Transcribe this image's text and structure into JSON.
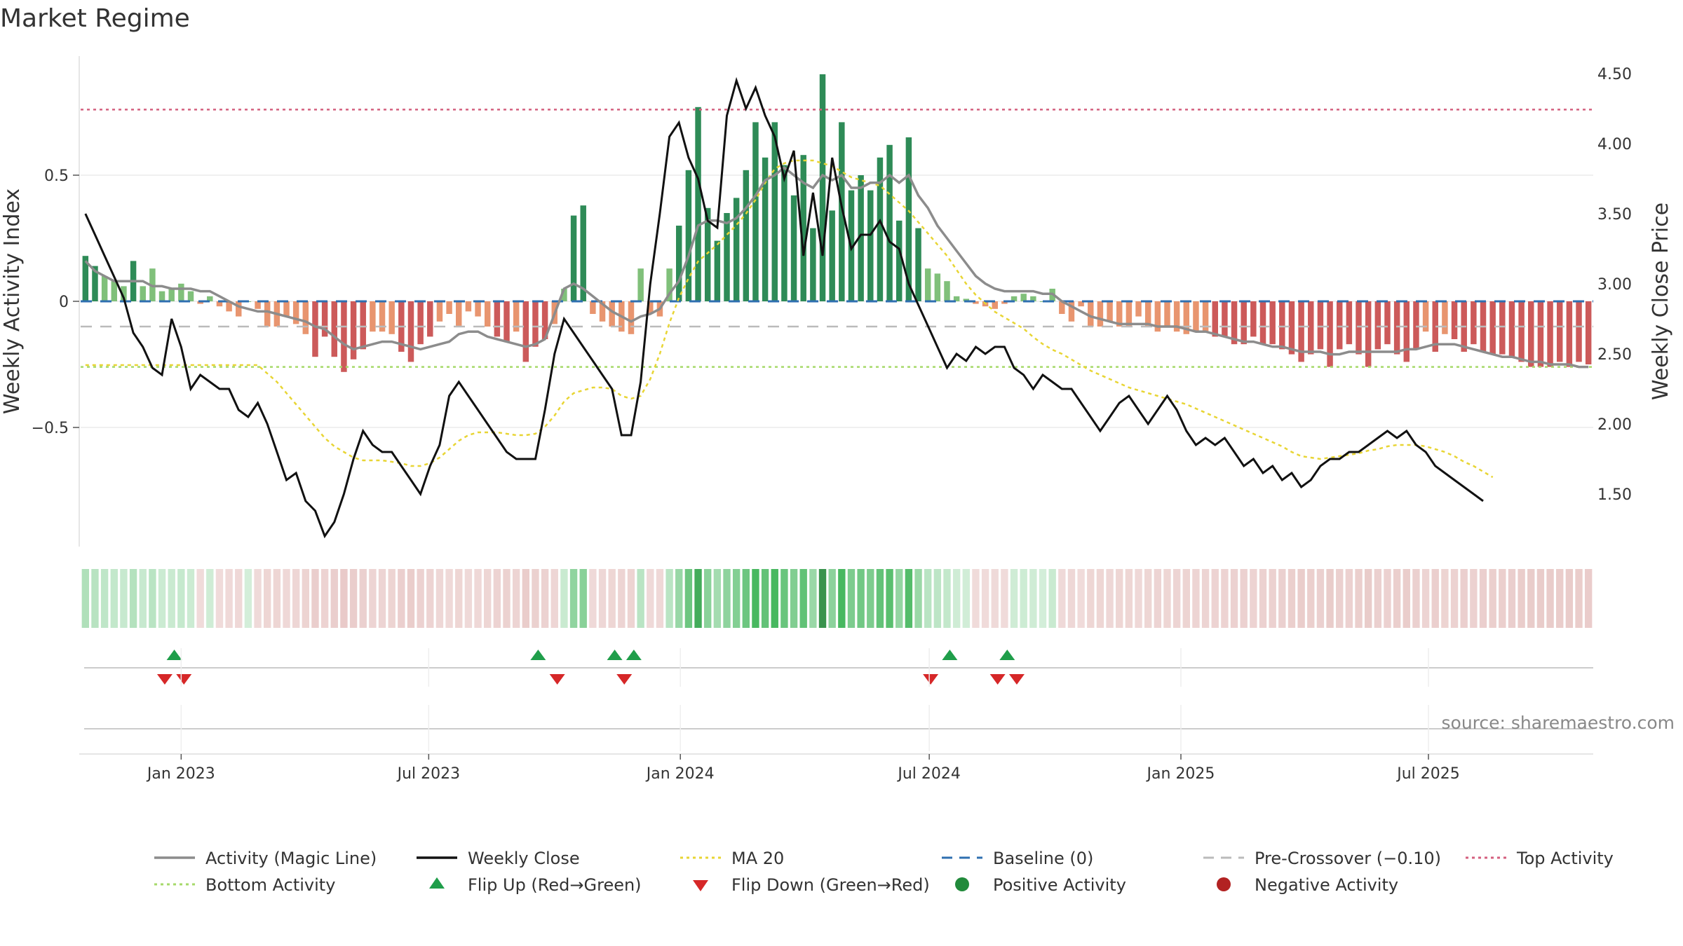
{
  "chart_data": {
    "type": "bar",
    "title": "Market Regime",
    "ylabel_left": "Weekly Activity Index",
    "ylabel_right": "Weekly Close Price",
    "source": "source: sharemaestro.com",
    "ylim_left": [
      -0.97,
      0.97
    ],
    "ylim_right": [
      1.1,
      4.6
    ],
    "left_ticks": [
      {
        "v": 0.5,
        "label": "0.5"
      },
      {
        "v": 0,
        "label": "0"
      },
      {
        "v": -0.5,
        "label": "−0.5"
      }
    ],
    "right_ticks": [
      {
        "v": 4.5,
        "label": "4.50"
      },
      {
        "v": 4.0,
        "label": "4.00"
      },
      {
        "v": 3.5,
        "label": "3.50"
      },
      {
        "v": 3.0,
        "label": "3.00"
      },
      {
        "v": 2.5,
        "label": "2.50"
      },
      {
        "v": 2.0,
        "label": "2.00"
      },
      {
        "v": 1.5,
        "label": "1.50"
      }
    ],
    "x_start": "2022-10-23",
    "x_ticks": [
      {
        "date": "2023-01-01",
        "label": "Jan 2023"
      },
      {
        "date": "2023-07-01",
        "label": "Jul 2023"
      },
      {
        "date": "2024-01-01",
        "label": "Jan 2024"
      },
      {
        "date": "2024-07-01",
        "label": "Jul 2024"
      },
      {
        "date": "2025-01-01",
        "label": "Jan 2025"
      },
      {
        "date": "2025-07-01",
        "label": "Jul 2025"
      }
    ],
    "reference_lines": {
      "baseline": 0,
      "pre_crossover": -0.1,
      "top_activity": 0.76,
      "bottom_activity": -0.26
    },
    "activity": [
      0.18,
      0.14,
      0.1,
      0.08,
      0.06,
      0.16,
      0.06,
      0.13,
      0.04,
      0.05,
      0.07,
      0.04,
      -0.01,
      0.02,
      -0.02,
      -0.04,
      -0.06,
      0.0,
      -0.03,
      -0.1,
      -0.1,
      -0.06,
      -0.09,
      -0.13,
      -0.22,
      -0.14,
      -0.22,
      -0.28,
      -0.23,
      -0.19,
      -0.12,
      -0.12,
      -0.13,
      -0.2,
      -0.24,
      -0.17,
      -0.14,
      -0.08,
      -0.05,
      -0.1,
      -0.04,
      -0.06,
      -0.1,
      -0.14,
      -0.16,
      -0.12,
      -0.24,
      -0.18,
      -0.15,
      -0.09,
      0.05,
      0.34,
      0.38,
      -0.05,
      -0.08,
      -0.1,
      -0.12,
      -0.13,
      0.13,
      -0.05,
      -0.06,
      0.13,
      0.3,
      0.52,
      0.77,
      0.37,
      0.24,
      0.35,
      0.41,
      0.52,
      0.71,
      0.57,
      0.71,
      0.54,
      0.42,
      0.58,
      0.29,
      0.9,
      0.36,
      0.71,
      0.44,
      0.5,
      0.44,
      0.57,
      0.62,
      0.32,
      0.65,
      0.29,
      0.13,
      0.11,
      0.08,
      0.02,
      0.01,
      -0.01,
      -0.02,
      -0.03,
      -0.01,
      0.02,
      0.03,
      0.02,
      0.0,
      0.05,
      -0.05,
      -0.08,
      -0.02,
      -0.1,
      -0.1,
      -0.08,
      -0.1,
      -0.1,
      -0.06,
      -0.1,
      -0.12,
      -0.1,
      -0.12,
      -0.13,
      -0.12,
      -0.12,
      -0.14,
      -0.14,
      -0.17,
      -0.17,
      -0.14,
      -0.17,
      -0.17,
      -0.19,
      -0.21,
      -0.24,
      -0.21,
      -0.19,
      -0.26,
      -0.19,
      -0.17,
      -0.21,
      -0.26,
      -0.19,
      -0.17,
      -0.21,
      -0.24,
      -0.19,
      -0.12,
      -0.2,
      -0.13,
      -0.15,
      -0.2,
      -0.17,
      -0.2,
      -0.21,
      -0.21,
      -0.22,
      -0.24,
      -0.26,
      -0.26,
      -0.26,
      -0.24,
      -0.26,
      -0.24,
      -0.25
    ],
    "magic_line": [
      0.16,
      0.12,
      0.1,
      0.08,
      0.08,
      0.08,
      0.08,
      0.06,
      0.06,
      0.05,
      0.05,
      0.05,
      0.04,
      0.04,
      0.02,
      0.0,
      -0.02,
      -0.03,
      -0.04,
      -0.04,
      -0.05,
      -0.06,
      -0.07,
      -0.08,
      -0.1,
      -0.11,
      -0.14,
      -0.17,
      -0.19,
      -0.18,
      -0.17,
      -0.16,
      -0.16,
      -0.17,
      -0.18,
      -0.19,
      -0.18,
      -0.17,
      -0.16,
      -0.13,
      -0.12,
      -0.12,
      -0.14,
      -0.15,
      -0.16,
      -0.17,
      -0.18,
      -0.17,
      -0.15,
      -0.05,
      0.05,
      0.07,
      0.05,
      0.02,
      -0.01,
      -0.04,
      -0.06,
      -0.08,
      -0.06,
      -0.05,
      -0.03,
      0.03,
      0.08,
      0.18,
      0.3,
      0.32,
      0.32,
      0.31,
      0.33,
      0.37,
      0.42,
      0.48,
      0.5,
      0.53,
      0.5,
      0.47,
      0.45,
      0.5,
      0.48,
      0.5,
      0.45,
      0.45,
      0.47,
      0.47,
      0.5,
      0.47,
      0.5,
      0.42,
      0.37,
      0.3,
      0.25,
      0.2,
      0.15,
      0.1,
      0.07,
      0.05,
      0.04,
      0.04,
      0.04,
      0.04,
      0.03,
      0.03,
      0.0,
      -0.02,
      -0.04,
      -0.06,
      -0.07,
      -0.08,
      -0.09,
      -0.09,
      -0.09,
      -0.09,
      -0.1,
      -0.1,
      -0.1,
      -0.11,
      -0.12,
      -0.12,
      -0.13,
      -0.14,
      -0.15,
      -0.16,
      -0.16,
      -0.17,
      -0.18,
      -0.18,
      -0.19,
      -0.2,
      -0.2,
      -0.2,
      -0.21,
      -0.21,
      -0.2,
      -0.2,
      -0.2,
      -0.2,
      -0.2,
      -0.2,
      -0.19,
      -0.19,
      -0.18,
      -0.17,
      -0.17,
      -0.17,
      -0.18,
      -0.19,
      -0.2,
      -0.21,
      -0.22,
      -0.22,
      -0.23,
      -0.24,
      -0.24,
      -0.25,
      -0.25,
      -0.25,
      -0.26,
      -0.26
    ],
    "close": [
      3.5,
      3.35,
      3.2,
      3.05,
      2.9,
      2.65,
      2.55,
      2.4,
      2.35,
      2.75,
      2.55,
      2.25,
      2.35,
      2.3,
      2.25,
      2.25,
      2.1,
      2.05,
      2.15,
      2.0,
      1.8,
      1.6,
      1.65,
      1.45,
      1.38,
      1.2,
      1.3,
      1.5,
      1.75,
      1.95,
      1.85,
      1.8,
      1.8,
      1.7,
      1.6,
      1.5,
      1.7,
      1.85,
      2.2,
      2.3,
      2.2,
      2.1,
      2.0,
      1.9,
      1.8,
      1.75,
      1.75,
      1.75,
      2.1,
      2.5,
      2.75,
      2.65,
      2.55,
      2.45,
      2.35,
      2.25,
      1.92,
      1.92,
      2.3,
      3.0,
      3.5,
      4.05,
      4.15,
      3.9,
      3.75,
      3.45,
      3.4,
      4.2,
      4.45,
      4.25,
      4.4,
      4.2,
      4.05,
      3.75,
      3.95,
      3.2,
      3.65,
      3.2,
      3.9,
      3.55,
      3.25,
      3.35,
      3.35,
      3.45,
      3.3,
      3.25,
      3.0,
      2.85,
      2.7,
      2.55,
      2.4,
      2.5,
      2.45,
      2.55,
      2.5,
      2.55,
      2.55,
      2.4,
      2.35,
      2.25,
      2.35,
      2.3,
      2.25,
      2.25,
      2.15,
      2.05,
      1.95,
      2.05,
      2.15,
      2.2,
      2.1,
      2.0,
      2.1,
      2.2,
      2.1,
      1.95,
      1.85,
      1.9,
      1.85,
      1.9,
      1.8,
      1.7,
      1.75,
      1.65,
      1.7,
      1.6,
      1.65,
      1.55,
      1.6,
      1.7,
      1.75,
      1.75,
      1.8,
      1.8,
      1.85,
      1.9,
      1.95,
      1.9,
      1.95,
      1.85,
      1.8,
      1.7,
      1.65,
      1.6,
      1.55,
      1.5,
      1.45
    ],
    "ma20": [
      2.42,
      2.42,
      2.42,
      2.42,
      2.42,
      2.42,
      2.42,
      2.42,
      2.42,
      2.42,
      2.42,
      2.42,
      2.42,
      2.42,
      2.42,
      2.42,
      2.42,
      2.42,
      2.42,
      2.36,
      2.3,
      2.22,
      2.14,
      2.06,
      1.98,
      1.9,
      1.84,
      1.8,
      1.76,
      1.74,
      1.74,
      1.74,
      1.73,
      1.72,
      1.7,
      1.7,
      1.72,
      1.76,
      1.82,
      1.88,
      1.92,
      1.94,
      1.94,
      1.94,
      1.93,
      1.92,
      1.92,
      1.93,
      1.98,
      2.06,
      2.16,
      2.22,
      2.24,
      2.26,
      2.26,
      2.25,
      2.2,
      2.18,
      2.2,
      2.32,
      2.5,
      2.72,
      2.9,
      3.04,
      3.16,
      3.22,
      3.28,
      3.35,
      3.42,
      3.5,
      3.6,
      3.72,
      3.82,
      3.86,
      3.88,
      3.88,
      3.88,
      3.86,
      3.84,
      3.8,
      3.76,
      3.74,
      3.72,
      3.7,
      3.64,
      3.58,
      3.52,
      3.44,
      3.36,
      3.28,
      3.2,
      3.1,
      3.0,
      2.92,
      2.86,
      2.8,
      2.76,
      2.72,
      2.68,
      2.62,
      2.57,
      2.53,
      2.5,
      2.46,
      2.42,
      2.38,
      2.35,
      2.32,
      2.29,
      2.26,
      2.24,
      2.22,
      2.2,
      2.18,
      2.16,
      2.14,
      2.11,
      2.08,
      2.05,
      2.02,
      1.99,
      1.96,
      1.93,
      1.9,
      1.87,
      1.84,
      1.8,
      1.77,
      1.76,
      1.75,
      1.76,
      1.77,
      1.78,
      1.79,
      1.81,
      1.82,
      1.84,
      1.85,
      1.85,
      1.85,
      1.84,
      1.82,
      1.8,
      1.77,
      1.73,
      1.7,
      1.66,
      1.62
    ],
    "flip_up": [
      "2022-12-27",
      "2023-09-19",
      "2023-11-14",
      "2023-11-28",
      "2024-07-16",
      "2024-08-27"
    ],
    "flip_down": [
      "2022-12-20",
      "2023-01-03",
      "2023-10-03",
      "2023-11-21",
      "2024-07-02",
      "2024-08-20",
      "2024-09-03"
    ],
    "legend": [
      {
        "label": "Activity (Magic Line)",
        "kind": "line",
        "color": "#8c8c8c"
      },
      {
        "label": "Weekly Close",
        "kind": "line",
        "color": "#111111"
      },
      {
        "label": "MA 20",
        "kind": "dotted",
        "color": "#e8d534"
      },
      {
        "label": "Baseline (0)",
        "kind": "dashed",
        "color": "#2f6fb0"
      },
      {
        "label": "Pre-Crossover (−0.10)",
        "kind": "dashed",
        "color": "#bbbbbb"
      },
      {
        "label": "Top Activity",
        "kind": "dotted",
        "color": "#d4607f"
      },
      {
        "label": "Bottom Activity",
        "kind": "dotted",
        "color": "#a6d96a"
      },
      {
        "label": "Flip Up (Red→Green)",
        "kind": "tri-up",
        "color": "#1f9e4a"
      },
      {
        "label": "Flip Down (Green→Red)",
        "kind": "tri-down",
        "color": "#d62728"
      },
      {
        "label": "Positive Activity",
        "kind": "circle",
        "color": "#218a3b"
      },
      {
        "label": "Negative Activity",
        "kind": "circle",
        "color": "#b22222"
      }
    ]
  },
  "colors": {
    "pos_strong": "#2e8b57",
    "pos_weak": "#80c07a",
    "neg_strong": "#cc5a5a",
    "neg_weak": "#e8956f",
    "baseline": "#2f6fb0",
    "pre_cross": "#bbbbbb",
    "top": "#d4607f",
    "bottom": "#a6d96a",
    "magic": "#8c8c8c",
    "close": "#111111",
    "ma": "#e8d534",
    "up": "#1f9e4a",
    "down": "#d62728"
  }
}
